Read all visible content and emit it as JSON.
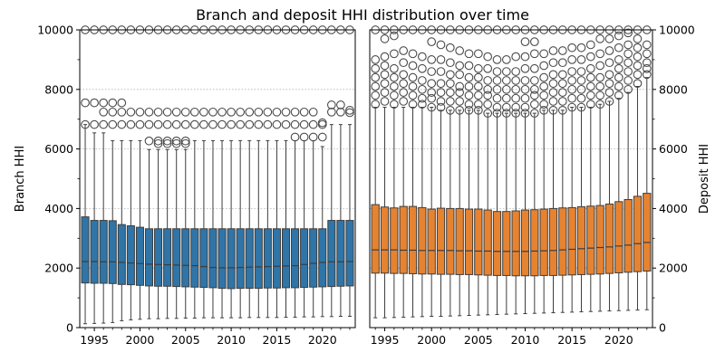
{
  "title": "Branch and deposit HHI distribution over time",
  "chart_data": {
    "type": "boxplot",
    "title": "Branch and deposit HHI distribution over time",
    "years": [
      1994,
      1995,
      1996,
      1997,
      1998,
      1999,
      2000,
      2001,
      2002,
      2003,
      2004,
      2005,
      2006,
      2007,
      2008,
      2009,
      2010,
      2011,
      2012,
      2013,
      2014,
      2015,
      2016,
      2017,
      2018,
      2019,
      2020,
      2021,
      2022,
      2023
    ],
    "xticks": [
      1995,
      2000,
      2005,
      2010,
      2015,
      2020
    ],
    "ylim": [
      0,
      10000
    ],
    "yticks": [
      0,
      2000,
      4000,
      6000,
      8000,
      10000
    ],
    "grid": "horizontal dotted at major ticks",
    "panels": [
      {
        "ylabel": "Branch HHI",
        "ylabel_side": "left",
        "color": "#2f75a8",
        "boxes": [
          {
            "q1": 1500,
            "median": 2220,
            "q3": 3720,
            "wlow": 130,
            "whigh": 6820,
            "outliers": [
              7550,
              6820,
              10000
            ]
          },
          {
            "q1": 1490,
            "median": 2220,
            "q3": 3600,
            "wlow": 140,
            "whigh": 6540,
            "outliers": [
              7550,
              6820,
              10000
            ]
          },
          {
            "q1": 1490,
            "median": 2210,
            "q3": 3600,
            "wlow": 150,
            "whigh": 6540,
            "outliers": [
              7550,
              7240,
              6820,
              10000
            ]
          },
          {
            "q1": 1480,
            "median": 2210,
            "q3": 3590,
            "wlow": 170,
            "whigh": 6280,
            "outliers": [
              7550,
              7240,
              6820,
              10000
            ]
          },
          {
            "q1": 1450,
            "median": 2190,
            "q3": 3460,
            "wlow": 230,
            "whigh": 6280,
            "outliers": [
              7550,
              7240,
              6820,
              10000
            ]
          },
          {
            "q1": 1440,
            "median": 2170,
            "q3": 3420,
            "wlow": 260,
            "whigh": 6280,
            "outliers": [
              7240,
              6820,
              10000
            ]
          },
          {
            "q1": 1420,
            "median": 2150,
            "q3": 3370,
            "wlow": 280,
            "whigh": 6280,
            "outliers": [
              7240,
              6820,
              10000
            ]
          },
          {
            "q1": 1400,
            "median": 2130,
            "q3": 3320,
            "wlow": 300,
            "whigh": 5980,
            "outliers": [
              7240,
              6820,
              6270,
              10000
            ]
          },
          {
            "q1": 1390,
            "median": 2120,
            "q3": 3320,
            "wlow": 300,
            "whigh": 5980,
            "outliers": [
              7240,
              6820,
              6270,
              6180,
              10000
            ]
          },
          {
            "q1": 1390,
            "median": 2110,
            "q3": 3320,
            "wlow": 310,
            "whigh": 5980,
            "outliers": [
              7240,
              6820,
              6270,
              6180,
              10000
            ]
          },
          {
            "q1": 1380,
            "median": 2100,
            "q3": 3320,
            "wlow": 310,
            "whigh": 5980,
            "outliers": [
              7240,
              6820,
              6270,
              6180,
              10000
            ]
          },
          {
            "q1": 1370,
            "median": 2090,
            "q3": 3320,
            "wlow": 320,
            "whigh": 5980,
            "outliers": [
              7240,
              6820,
              6270,
              6180,
              10000
            ]
          },
          {
            "q1": 1360,
            "median": 2080,
            "q3": 3320,
            "wlow": 320,
            "whigh": 6280,
            "outliers": [
              7240,
              6820,
              10000
            ]
          },
          {
            "q1": 1350,
            "median": 2050,
            "q3": 3320,
            "wlow": 330,
            "whigh": 6280,
            "outliers": [
              7240,
              6820,
              10000
            ]
          },
          {
            "q1": 1340,
            "median": 2020,
            "q3": 3320,
            "wlow": 330,
            "whigh": 6280,
            "outliers": [
              7240,
              6820,
              10000
            ]
          },
          {
            "q1": 1320,
            "median": 2010,
            "q3": 3320,
            "wlow": 330,
            "whigh": 6280,
            "outliers": [
              7240,
              6820,
              10000
            ]
          },
          {
            "q1": 1310,
            "median": 2010,
            "q3": 3320,
            "wlow": 330,
            "whigh": 6280,
            "outliers": [
              7240,
              6820,
              10000
            ]
          },
          {
            "q1": 1320,
            "median": 2020,
            "q3": 3320,
            "wlow": 330,
            "whigh": 6280,
            "outliers": [
              7240,
              6820,
              10000
            ]
          },
          {
            "q1": 1320,
            "median": 2030,
            "q3": 3320,
            "wlow": 340,
            "whigh": 6280,
            "outliers": [
              7240,
              6820,
              10000
            ]
          },
          {
            "q1": 1320,
            "median": 2040,
            "q3": 3320,
            "wlow": 340,
            "whigh": 6280,
            "outliers": [
              7240,
              6820,
              10000
            ]
          },
          {
            "q1": 1330,
            "median": 2050,
            "q3": 3320,
            "wlow": 340,
            "whigh": 6280,
            "outliers": [
              7240,
              6820,
              10000
            ]
          },
          {
            "q1": 1330,
            "median": 2060,
            "q3": 3320,
            "wlow": 340,
            "whigh": 6280,
            "outliers": [
              7240,
              6820,
              10000
            ]
          },
          {
            "q1": 1340,
            "median": 2070,
            "q3": 3320,
            "wlow": 350,
            "whigh": 6280,
            "outliers": [
              7240,
              6820,
              10000
            ]
          },
          {
            "q1": 1340,
            "median": 2080,
            "q3": 3320,
            "wlow": 350,
            "whigh": 6280,
            "outliers": [
              7240,
              6820,
              6400,
              10000
            ]
          },
          {
            "q1": 1350,
            "median": 2120,
            "q3": 3320,
            "wlow": 360,
            "whigh": 6280,
            "outliers": [
              7240,
              6820,
              6400,
              10000
            ]
          },
          {
            "q1": 1360,
            "median": 2160,
            "q3": 3320,
            "wlow": 360,
            "whigh": 6280,
            "outliers": [
              7240,
              6820,
              6400,
              10000
            ]
          },
          {
            "q1": 1370,
            "median": 2190,
            "q3": 3320,
            "wlow": 370,
            "whigh": 6080,
            "outliers": [
              6880,
              6820,
              6400,
              10000
            ]
          },
          {
            "q1": 1380,
            "median": 2210,
            "q3": 3600,
            "wlow": 370,
            "whigh": 6820,
            "outliers": [
              7480,
              7240,
              10000
            ]
          },
          {
            "q1": 1390,
            "median": 2210,
            "q3": 3600,
            "wlow": 380,
            "whigh": 6820,
            "outliers": [
              7480,
              7240,
              10000
            ]
          },
          {
            "q1": 1400,
            "median": 2220,
            "q3": 3600,
            "wlow": 380,
            "whigh": 6820,
            "outliers": [
              7300,
              7220,
              10000
            ]
          }
        ]
      },
      {
        "ylabel": "Deposit HHI",
        "ylabel_side": "right",
        "color": "#e68331",
        "boxes": [
          {
            "q1": 1830,
            "median": 2610,
            "q3": 4130,
            "wlow": 330,
            "whigh": 7400,
            "outliers": [
              7500,
              7800,
              8100,
              8400,
              8700,
              9000,
              10000
            ]
          },
          {
            "q1": 1830,
            "median": 2610,
            "q3": 4050,
            "wlow": 330,
            "whigh": 7400,
            "outliers": [
              7600,
              7900,
              8200,
              8500,
              8800,
              9100,
              9700,
              10000
            ]
          },
          {
            "q1": 1820,
            "median": 2610,
            "q3": 4020,
            "wlow": 340,
            "whigh": 7400,
            "outliers": [
              7500,
              7800,
              8100,
              8400,
              8700,
              9200,
              9800,
              10000
            ]
          },
          {
            "q1": 1820,
            "median": 2600,
            "q3": 4070,
            "wlow": 350,
            "whigh": 7400,
            "outliers": [
              7600,
              7900,
              8200,
              8500,
              8900,
              9300,
              10000
            ]
          },
          {
            "q1": 1810,
            "median": 2600,
            "q3": 4070,
            "wlow": 360,
            "whigh": 7400,
            "outliers": [
              7500,
              7800,
              8100,
              8400,
              8800,
              9200,
              10000
            ]
          },
          {
            "q1": 1800,
            "median": 2590,
            "q3": 4030,
            "wlow": 370,
            "whigh": 7400,
            "outliers": [
              7500,
              7700,
              8000,
              8300,
              8700,
              9100,
              10000
            ]
          },
          {
            "q1": 1800,
            "median": 2590,
            "q3": 3980,
            "wlow": 380,
            "whigh": 7400,
            "outliers": [
              7400,
              7700,
              7900,
              8200,
              8600,
              9000,
              9600,
              10000
            ]
          },
          {
            "q1": 1790,
            "median": 2590,
            "q3": 4010,
            "wlow": 380,
            "whigh": 7300,
            "outliers": [
              7400,
              7600,
              7900,
              8200,
              8600,
              9000,
              9500,
              10000
            ]
          },
          {
            "q1": 1790,
            "median": 2590,
            "q3": 4000,
            "wlow": 390,
            "whigh": 7300,
            "outliers": [
              7300,
              7600,
              7900,
              8200,
              8500,
              8900,
              9400,
              10000
            ]
          },
          {
            "q1": 1780,
            "median": 2580,
            "q3": 4000,
            "wlow": 400,
            "whigh": 7300,
            "outliers": [
              7300,
              7600,
              7900,
              8100,
              8500,
              8800,
              9300,
              10000
            ]
          },
          {
            "q1": 1780,
            "median": 2580,
            "q3": 3980,
            "wlow": 410,
            "whigh": 7300,
            "outliers": [
              7300,
              7500,
              7800,
              8100,
              8400,
              8800,
              9200,
              10000
            ]
          },
          {
            "q1": 1770,
            "median": 2570,
            "q3": 3980,
            "wlow": 420,
            "whigh": 7300,
            "outliers": [
              7300,
              7500,
              7800,
              8100,
              8400,
              8700,
              9200,
              10000
            ]
          },
          {
            "q1": 1760,
            "median": 2570,
            "q3": 3950,
            "wlow": 430,
            "whigh": 7200,
            "outliers": [
              7200,
              7500,
              7800,
              8000,
              8300,
              8700,
              9100,
              10000
            ]
          },
          {
            "q1": 1750,
            "median": 2560,
            "q3": 3900,
            "wlow": 440,
            "whigh": 7200,
            "outliers": [
              7200,
              7400,
              7700,
              8000,
              8300,
              8600,
              9000,
              10000
            ]
          },
          {
            "q1": 1750,
            "median": 2560,
            "q3": 3900,
            "wlow": 450,
            "whigh": 7200,
            "outliers": [
              7200,
              7400,
              7700,
              8000,
              8300,
              8600,
              9000,
              10000
            ]
          },
          {
            "q1": 1740,
            "median": 2560,
            "q3": 3920,
            "wlow": 460,
            "whigh": 7200,
            "outliers": [
              7200,
              7400,
              7700,
              8000,
              8300,
              8600,
              9100,
              10000
            ]
          },
          {
            "q1": 1740,
            "median": 2560,
            "q3": 3950,
            "wlow": 470,
            "whigh": 7200,
            "outliers": [
              7200,
              7400,
              7700,
              8000,
              8300,
              8700,
              9100,
              9600,
              10000
            ]
          },
          {
            "q1": 1740,
            "median": 2570,
            "q3": 3960,
            "wlow": 480,
            "whigh": 7200,
            "outliers": [
              7200,
              7500,
              7800,
              8000,
              8300,
              8700,
              9200,
              9600,
              10000
            ]
          },
          {
            "q1": 1750,
            "median": 2580,
            "q3": 3980,
            "wlow": 490,
            "whigh": 7300,
            "outliers": [
              7300,
              7500,
              7800,
              8100,
              8400,
              8800,
              9200,
              10000
            ]
          },
          {
            "q1": 1750,
            "median": 2590,
            "q3": 4000,
            "wlow": 500,
            "whigh": 7300,
            "outliers": [
              7300,
              7600,
              7900,
              8200,
              8500,
              8900,
              9300,
              10000
            ]
          },
          {
            "q1": 1760,
            "median": 2610,
            "q3": 4020,
            "wlow": 510,
            "whigh": 7300,
            "outliers": [
              7300,
              7600,
              7900,
              8200,
              8500,
              8900,
              9300,
              10000
            ]
          },
          {
            "q1": 1770,
            "median": 2630,
            "q3": 4030,
            "wlow": 520,
            "whigh": 7400,
            "outliers": [
              7400,
              7700,
              8000,
              8300,
              8600,
              9000,
              9400,
              10000
            ]
          },
          {
            "q1": 1780,
            "median": 2650,
            "q3": 4060,
            "wlow": 530,
            "whigh": 7400,
            "outliers": [
              7400,
              7700,
              8000,
              8300,
              8600,
              9000,
              9400,
              10000
            ]
          },
          {
            "q1": 1790,
            "median": 2670,
            "q3": 4080,
            "wlow": 540,
            "whigh": 7400,
            "outliers": [
              7500,
              7800,
              8100,
              8400,
              8700,
              9100,
              9500,
              10000
            ]
          },
          {
            "q1": 1800,
            "median": 2690,
            "q3": 4100,
            "wlow": 550,
            "whigh": 7500,
            "outliers": [
              7500,
              7800,
              8100,
              8400,
              8800,
              9200,
              9700,
              10000
            ]
          },
          {
            "q1": 1820,
            "median": 2710,
            "q3": 4150,
            "wlow": 560,
            "whigh": 7600,
            "outliers": [
              7600,
              7900,
              8200,
              8500,
              8900,
              9300,
              9700,
              10000
            ]
          },
          {
            "q1": 1840,
            "median": 2740,
            "q3": 4230,
            "wlow": 570,
            "whigh": 7700,
            "outliers": [
              7800,
              8100,
              8400,
              8700,
              9000,
              9400,
              9800,
              10000
            ]
          },
          {
            "q1": 1860,
            "median": 2770,
            "q3": 4300,
            "wlow": 580,
            "whigh": 7900,
            "outliers": [
              8000,
              8300,
              8600,
              8900,
              9200,
              9500,
              9900,
              10000
            ]
          },
          {
            "q1": 1880,
            "median": 2820,
            "q3": 4410,
            "wlow": 590,
            "whigh": 8100,
            "outliers": [
              8200,
              8500,
              8800,
              9100,
              9400,
              9700,
              10000
            ]
          },
          {
            "q1": 1900,
            "median": 2860,
            "q3": 4510,
            "wlow": 600,
            "whigh": 8400,
            "outliers": [
              8500,
              8700,
              8900,
              9200,
              9500,
              10000
            ]
          }
        ]
      }
    ]
  }
}
